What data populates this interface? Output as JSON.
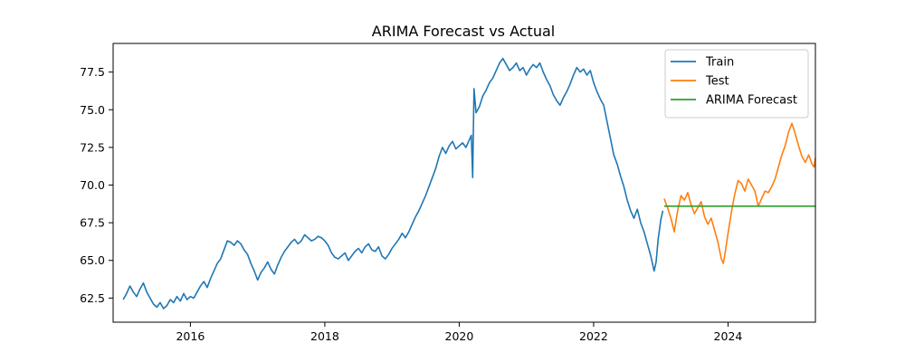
{
  "chart_data": {
    "type": "line",
    "title": "ARIMA Forecast vs Actual",
    "xlabel": "",
    "ylabel": "",
    "xlim": [
      2014.85,
      2025.3
    ],
    "ylim": [
      60.9,
      79.4
    ],
    "x_ticks": [
      2016,
      2018,
      2020,
      2022,
      2024
    ],
    "x_tick_labels": [
      "2016",
      "2018",
      "2020",
      "2022",
      "2024"
    ],
    "y_ticks": [
      62.5,
      65.0,
      67.5,
      70.0,
      72.5,
      75.0,
      77.5
    ],
    "y_tick_labels": [
      "62.5",
      "65.0",
      "67.5",
      "70.0",
      "72.5",
      "75.0",
      "77.5"
    ],
    "grid": false,
    "legend_position": "top-right",
    "series": [
      {
        "name": "Train",
        "color": "#1f77b4",
        "points": [
          [
            2015.0,
            62.4
          ],
          [
            2015.05,
            62.8
          ],
          [
            2015.1,
            63.3
          ],
          [
            2015.15,
            62.9
          ],
          [
            2015.2,
            62.6
          ],
          [
            2015.25,
            63.1
          ],
          [
            2015.3,
            63.5
          ],
          [
            2015.35,
            62.9
          ],
          [
            2015.4,
            62.5
          ],
          [
            2015.45,
            62.1
          ],
          [
            2015.5,
            61.9
          ],
          [
            2015.55,
            62.2
          ],
          [
            2015.6,
            61.8
          ],
          [
            2015.65,
            62.0
          ],
          [
            2015.7,
            62.4
          ],
          [
            2015.75,
            62.2
          ],
          [
            2015.8,
            62.6
          ],
          [
            2015.85,
            62.3
          ],
          [
            2015.9,
            62.8
          ],
          [
            2015.95,
            62.4
          ],
          [
            2016.0,
            62.6
          ],
          [
            2016.05,
            62.5
          ],
          [
            2016.1,
            62.9
          ],
          [
            2016.15,
            63.3
          ],
          [
            2016.2,
            63.6
          ],
          [
            2016.25,
            63.2
          ],
          [
            2016.3,
            63.8
          ],
          [
            2016.35,
            64.3
          ],
          [
            2016.4,
            64.8
          ],
          [
            2016.45,
            65.1
          ],
          [
            2016.5,
            65.7
          ],
          [
            2016.55,
            66.3
          ],
          [
            2016.6,
            66.2
          ],
          [
            2016.65,
            66.0
          ],
          [
            2016.7,
            66.3
          ],
          [
            2016.75,
            66.1
          ],
          [
            2016.8,
            65.7
          ],
          [
            2016.85,
            65.4
          ],
          [
            2016.9,
            64.8
          ],
          [
            2016.95,
            64.3
          ],
          [
            2017.0,
            63.7
          ],
          [
            2017.05,
            64.2
          ],
          [
            2017.1,
            64.5
          ],
          [
            2017.15,
            64.9
          ],
          [
            2017.2,
            64.4
          ],
          [
            2017.25,
            64.1
          ],
          [
            2017.3,
            64.7
          ],
          [
            2017.35,
            65.2
          ],
          [
            2017.4,
            65.6
          ],
          [
            2017.45,
            65.9
          ],
          [
            2017.5,
            66.2
          ],
          [
            2017.55,
            66.4
          ],
          [
            2017.6,
            66.1
          ],
          [
            2017.65,
            66.3
          ],
          [
            2017.7,
            66.7
          ],
          [
            2017.75,
            66.5
          ],
          [
            2017.8,
            66.3
          ],
          [
            2017.85,
            66.4
          ],
          [
            2017.9,
            66.6
          ],
          [
            2017.95,
            66.5
          ],
          [
            2018.0,
            66.3
          ],
          [
            2018.05,
            66.0
          ],
          [
            2018.1,
            65.5
          ],
          [
            2018.15,
            65.2
          ],
          [
            2018.2,
            65.1
          ],
          [
            2018.25,
            65.3
          ],
          [
            2018.3,
            65.5
          ],
          [
            2018.35,
            65.0
          ],
          [
            2018.4,
            65.3
          ],
          [
            2018.45,
            65.6
          ],
          [
            2018.5,
            65.8
          ],
          [
            2018.55,
            65.5
          ],
          [
            2018.6,
            65.9
          ],
          [
            2018.65,
            66.1
          ],
          [
            2018.7,
            65.7
          ],
          [
            2018.75,
            65.6
          ],
          [
            2018.8,
            65.9
          ],
          [
            2018.85,
            65.3
          ],
          [
            2018.9,
            65.1
          ],
          [
            2018.95,
            65.4
          ],
          [
            2019.0,
            65.8
          ],
          [
            2019.05,
            66.1
          ],
          [
            2019.1,
            66.4
          ],
          [
            2019.15,
            66.8
          ],
          [
            2019.2,
            66.5
          ],
          [
            2019.25,
            66.9
          ],
          [
            2019.3,
            67.4
          ],
          [
            2019.35,
            67.9
          ],
          [
            2019.4,
            68.3
          ],
          [
            2019.45,
            68.8
          ],
          [
            2019.5,
            69.3
          ],
          [
            2019.55,
            69.9
          ],
          [
            2019.6,
            70.5
          ],
          [
            2019.65,
            71.1
          ],
          [
            2019.7,
            71.9
          ],
          [
            2019.75,
            72.5
          ],
          [
            2019.8,
            72.1
          ],
          [
            2019.85,
            72.6
          ],
          [
            2019.9,
            72.9
          ],
          [
            2019.95,
            72.4
          ],
          [
            2020.0,
            72.6
          ],
          [
            2020.05,
            72.8
          ],
          [
            2020.1,
            72.5
          ],
          [
            2020.15,
            73.0
          ],
          [
            2020.18,
            73.3
          ],
          [
            2020.2,
            70.5
          ],
          [
            2020.22,
            76.4
          ],
          [
            2020.25,
            74.8
          ],
          [
            2020.3,
            75.2
          ],
          [
            2020.35,
            75.9
          ],
          [
            2020.4,
            76.3
          ],
          [
            2020.45,
            76.8
          ],
          [
            2020.5,
            77.1
          ],
          [
            2020.55,
            77.6
          ],
          [
            2020.6,
            78.1
          ],
          [
            2020.65,
            78.4
          ],
          [
            2020.7,
            78.0
          ],
          [
            2020.75,
            77.6
          ],
          [
            2020.8,
            77.8
          ],
          [
            2020.85,
            78.1
          ],
          [
            2020.9,
            77.6
          ],
          [
            2020.95,
            77.8
          ],
          [
            2021.0,
            77.3
          ],
          [
            2021.05,
            77.7
          ],
          [
            2021.1,
            78.0
          ],
          [
            2021.15,
            77.8
          ],
          [
            2021.2,
            78.1
          ],
          [
            2021.25,
            77.5
          ],
          [
            2021.3,
            77.0
          ],
          [
            2021.35,
            76.6
          ],
          [
            2021.4,
            76.0
          ],
          [
            2021.45,
            75.6
          ],
          [
            2021.5,
            75.3
          ],
          [
            2021.55,
            75.8
          ],
          [
            2021.6,
            76.2
          ],
          [
            2021.65,
            76.7
          ],
          [
            2021.7,
            77.3
          ],
          [
            2021.75,
            77.8
          ],
          [
            2021.8,
            77.5
          ],
          [
            2021.85,
            77.7
          ],
          [
            2021.9,
            77.3
          ],
          [
            2021.95,
            77.6
          ],
          [
            2022.0,
            76.8
          ],
          [
            2022.05,
            76.2
          ],
          [
            2022.1,
            75.7
          ],
          [
            2022.15,
            75.3
          ],
          [
            2022.2,
            74.2
          ],
          [
            2022.25,
            73.1
          ],
          [
            2022.3,
            72.0
          ],
          [
            2022.35,
            71.4
          ],
          [
            2022.4,
            70.6
          ],
          [
            2022.45,
            69.9
          ],
          [
            2022.5,
            69.0
          ],
          [
            2022.55,
            68.3
          ],
          [
            2022.6,
            67.8
          ],
          [
            2022.65,
            68.4
          ],
          [
            2022.7,
            67.5
          ],
          [
            2022.75,
            66.9
          ],
          [
            2022.8,
            66.1
          ],
          [
            2022.85,
            65.3
          ],
          [
            2022.9,
            64.3
          ],
          [
            2022.93,
            64.9
          ],
          [
            2022.96,
            66.4
          ],
          [
            2023.0,
            67.7
          ],
          [
            2023.03,
            68.3
          ]
        ]
      },
      {
        "name": "Test",
        "color": "#ff7f0e",
        "points": [
          [
            2023.05,
            69.1
          ],
          [
            2023.1,
            68.5
          ],
          [
            2023.15,
            67.8
          ],
          [
            2023.2,
            66.9
          ],
          [
            2023.25,
            68.3
          ],
          [
            2023.3,
            69.3
          ],
          [
            2023.35,
            69.0
          ],
          [
            2023.4,
            69.5
          ],
          [
            2023.45,
            68.7
          ],
          [
            2023.5,
            68.1
          ],
          [
            2023.55,
            68.5
          ],
          [
            2023.6,
            68.9
          ],
          [
            2023.65,
            67.9
          ],
          [
            2023.7,
            67.4
          ],
          [
            2023.75,
            67.8
          ],
          [
            2023.8,
            67.0
          ],
          [
            2023.85,
            66.2
          ],
          [
            2023.9,
            65.1
          ],
          [
            2023.93,
            64.8
          ],
          [
            2023.96,
            65.6
          ],
          [
            2024.0,
            66.8
          ],
          [
            2024.05,
            68.2
          ],
          [
            2024.1,
            69.4
          ],
          [
            2024.15,
            70.3
          ],
          [
            2024.2,
            70.1
          ],
          [
            2024.25,
            69.6
          ],
          [
            2024.3,
            70.4
          ],
          [
            2024.35,
            70.0
          ],
          [
            2024.4,
            69.6
          ],
          [
            2024.45,
            68.6
          ],
          [
            2024.5,
            69.1
          ],
          [
            2024.55,
            69.6
          ],
          [
            2024.6,
            69.5
          ],
          [
            2024.65,
            69.9
          ],
          [
            2024.7,
            70.4
          ],
          [
            2024.75,
            71.2
          ],
          [
            2024.8,
            72.0
          ],
          [
            2024.85,
            72.6
          ],
          [
            2024.9,
            73.5
          ],
          [
            2024.95,
            74.1
          ],
          [
            2025.0,
            73.4
          ],
          [
            2025.05,
            72.6
          ],
          [
            2025.1,
            71.9
          ],
          [
            2025.15,
            71.5
          ],
          [
            2025.2,
            72.0
          ],
          [
            2025.25,
            71.4
          ],
          [
            2025.28,
            71.2
          ],
          [
            2025.3,
            71.8
          ]
        ]
      },
      {
        "name": "ARIMA Forecast",
        "color": "#2ca02c",
        "points": [
          [
            2023.05,
            68.6
          ],
          [
            2025.3,
            68.6
          ]
        ]
      }
    ]
  }
}
